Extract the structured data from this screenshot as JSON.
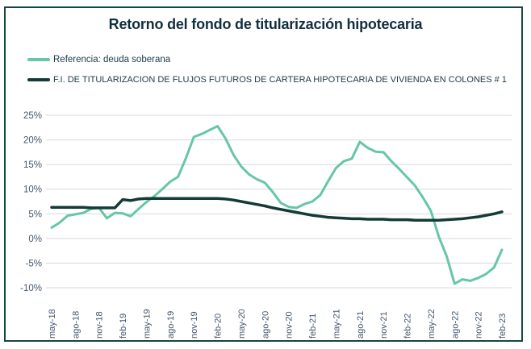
{
  "title": "Retorno del fondo de titularización  hipotecaria",
  "legend": [
    {
      "label": "Referencia: deuda soberana",
      "color": "#66c7a4"
    },
    {
      "label": "F.I. DE TITULARIZACION DE FLUJOS FUTUROS DE CARTERA HIPOTECARIA DE VIVIENDA EN COLONES # 1",
      "color": "#143a38"
    }
  ],
  "colors": {
    "reference_line": "#66c7a4",
    "fund_line": "#143a38",
    "gridline": "#d8d8d8",
    "axis_label": "#44566b",
    "border": "#134744",
    "title_text": "#122e3b"
  },
  "chart_data": {
    "type": "line",
    "title": "Retorno del fondo de titularización hipotecaria",
    "ylim": [
      -10,
      25
    ],
    "grid": "horizontal",
    "legend_position": "top-left",
    "y_ticks": [
      {
        "value": 25,
        "label": "25%"
      },
      {
        "value": 20,
        "label": "20%"
      },
      {
        "value": 15,
        "label": "15%"
      },
      {
        "value": 10,
        "label": "10%"
      },
      {
        "value": 5,
        "label": "5%"
      },
      {
        "value": 0,
        "label": "0%"
      },
      {
        "value": -5,
        "label": "-5%"
      },
      {
        "value": -10,
        "label": "-10%"
      }
    ],
    "x_tick_interval": 3,
    "x": [
      "may-18",
      "jun-18",
      "jul-18",
      "ago-18",
      "sep-18",
      "oct-18",
      "nov-18",
      "dic-18",
      "ene-19",
      "feb-19",
      "mar-19",
      "abr-19",
      "may-19",
      "jun-19",
      "jul-19",
      "ago-19",
      "sep-19",
      "oct-19",
      "nov-19",
      "dic-19",
      "ene-20",
      "feb-20",
      "mar-20",
      "abr-20",
      "may-20",
      "jun-20",
      "jul-20",
      "ago-20",
      "sep-20",
      "oct-20",
      "nov-20",
      "dic-20",
      "ene-21",
      "feb-21",
      "mar-21",
      "abr-21",
      "may-21",
      "jun-21",
      "jul-21",
      "ago-21",
      "sep-21",
      "oct-21",
      "nov-21",
      "dic-21",
      "ene-22",
      "feb-22",
      "mar-22",
      "abr-22",
      "may-22",
      "jun-22",
      "jul-22",
      "ago-22",
      "sep-22",
      "oct-22",
      "nov-22",
      "dic-22",
      "ene-23",
      "feb-23"
    ],
    "series": [
      {
        "name": "Referencia: deuda soberana",
        "color": "#66c7a4",
        "width": 3,
        "values": [
          2.2,
          3.2,
          4.6,
          4.9,
          5.2,
          6.0,
          6.2,
          4.1,
          5.2,
          5.1,
          4.5,
          6.0,
          7.4,
          8.6,
          10.0,
          11.5,
          12.5,
          16.3,
          20.6,
          21.2,
          22.0,
          22.8,
          20.3,
          17.0,
          14.6,
          13.0,
          12.0,
          11.3,
          9.4,
          7.2,
          6.4,
          6.2,
          7.0,
          7.5,
          8.8,
          11.6,
          14.3,
          15.7,
          16.2,
          19.6,
          18.4,
          17.6,
          17.5,
          15.7,
          14.1,
          12.4,
          10.7,
          8.3,
          5.6,
          0.4,
          -3.6,
          -9.2,
          -8.3,
          -8.6,
          -8.0,
          -7.2,
          -5.9,
          -2.3
        ]
      },
      {
        "name": "F.I. DE TITULARIZACION DE FLUJOS FUTUROS DE CARTERA HIPOTECARIA DE VIVIENDA EN COLONES # 1",
        "color": "#143a38",
        "width": 3.5,
        "values": [
          6.3,
          6.3,
          6.3,
          6.3,
          6.3,
          6.2,
          6.2,
          6.2,
          6.2,
          7.9,
          7.7,
          8.0,
          8.1,
          8.1,
          8.1,
          8.1,
          8.1,
          8.1,
          8.1,
          8.1,
          8.1,
          8.1,
          8.0,
          7.8,
          7.5,
          7.2,
          6.9,
          6.6,
          6.2,
          5.9,
          5.6,
          5.3,
          5.0,
          4.7,
          4.5,
          4.3,
          4.2,
          4.1,
          4.0,
          4.0,
          3.9,
          3.9,
          3.9,
          3.8,
          3.8,
          3.8,
          3.7,
          3.7,
          3.7,
          3.7,
          3.8,
          3.9,
          4.0,
          4.2,
          4.4,
          4.7,
          5.0,
          5.4
        ]
      }
    ]
  }
}
